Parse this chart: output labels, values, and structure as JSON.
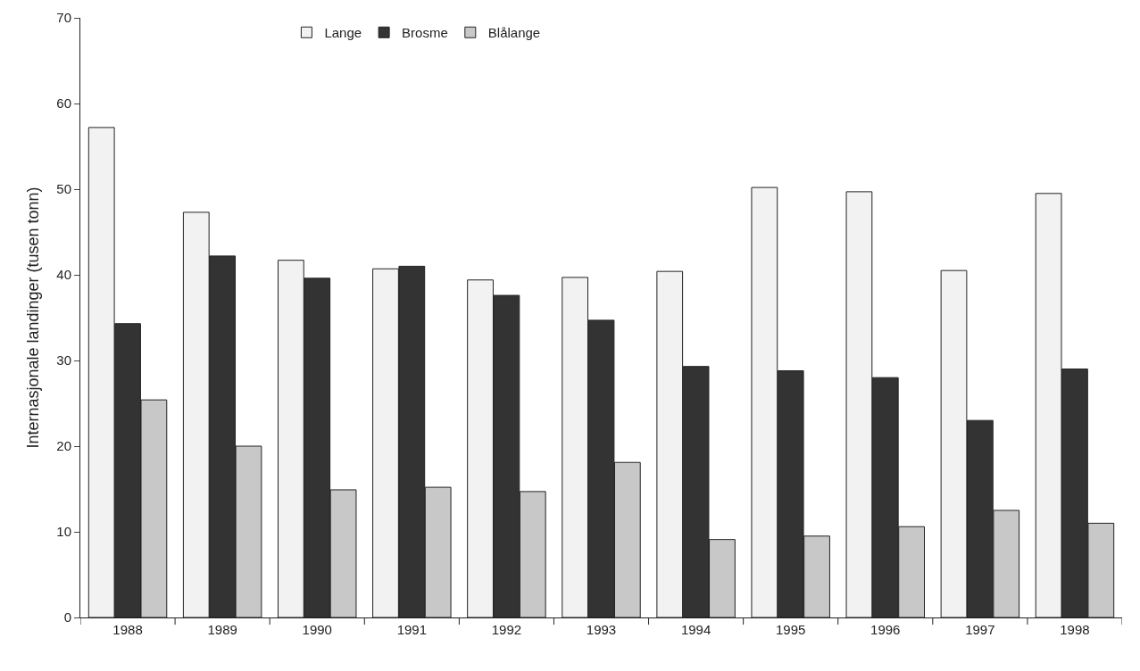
{
  "chart_data": {
    "type": "bar",
    "ylabel": "Internasjonale landinger (tusen tonn)",
    "categories": [
      "1988",
      "1989",
      "1990",
      "1991",
      "1992",
      "1993",
      "1994",
      "1995",
      "1996",
      "1997",
      "1998"
    ],
    "series": [
      {
        "name": "Lange",
        "color": "#f2f2f2",
        "values": [
          57.2,
          47.3,
          41.7,
          40.7,
          39.4,
          39.7,
          40.4,
          50.2,
          49.7,
          40.5,
          49.5
        ]
      },
      {
        "name": "Brosme",
        "color": "#333333",
        "values": [
          34.3,
          42.2,
          39.6,
          41.0,
          37.6,
          34.7,
          29.3,
          28.8,
          28.0,
          23.0,
          29.0
        ]
      },
      {
        "name": "Blålange",
        "color": "#c8c8c8",
        "values": [
          25.4,
          20.0,
          14.9,
          15.2,
          14.7,
          18.1,
          9.1,
          9.5,
          10.6,
          12.5,
          11.0
        ]
      }
    ],
    "ylim": [
      0,
      70
    ],
    "yticks": [
      0,
      10,
      20,
      30,
      40,
      50,
      60,
      70
    ],
    "legend": "top"
  }
}
